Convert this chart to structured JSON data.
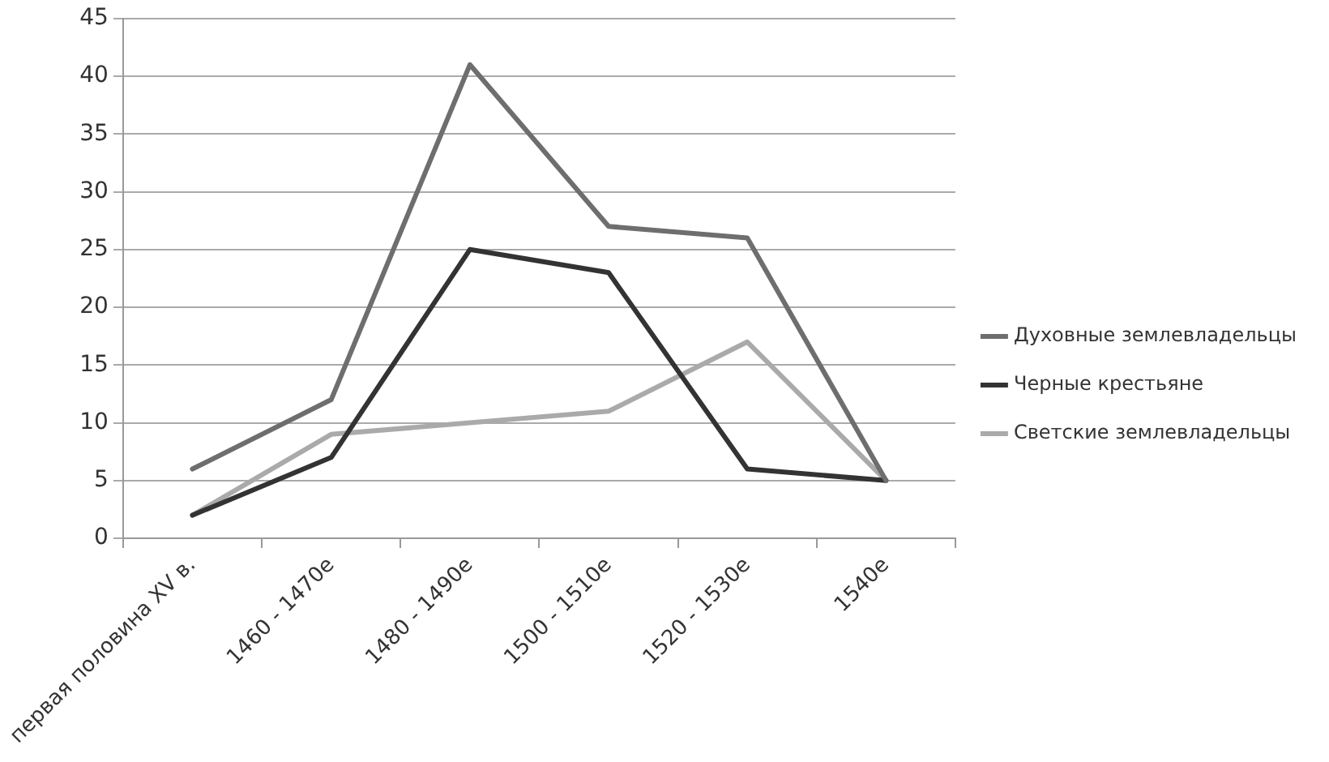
{
  "chart_data": {
    "type": "line",
    "categories": [
      "первая половина XV в.",
      "1460 - 1470е",
      "1480 - 1490е",
      "1500 - 1510е",
      "1520 - 1530е",
      "1540е"
    ],
    "series": [
      {
        "name": "Духовные землевладельцы",
        "color": "#6e6e6e",
        "values": [
          6,
          12,
          41,
          27,
          26,
          5
        ]
      },
      {
        "name": "Черные крестьяне",
        "color": "#333333",
        "values": [
          2,
          7,
          25,
          23,
          6,
          5
        ]
      },
      {
        "name": "Светские землевладельцы",
        "color": "#aaaaaa",
        "values": [
          2,
          9,
          10,
          11,
          17,
          5
        ]
      }
    ],
    "ylim": [
      0,
      45
    ],
    "yticks": [
      0,
      5,
      10,
      15,
      20,
      25,
      30,
      35,
      40,
      45
    ],
    "grid": "y",
    "legend": "right",
    "marker": "none",
    "line_style": "solid"
  }
}
